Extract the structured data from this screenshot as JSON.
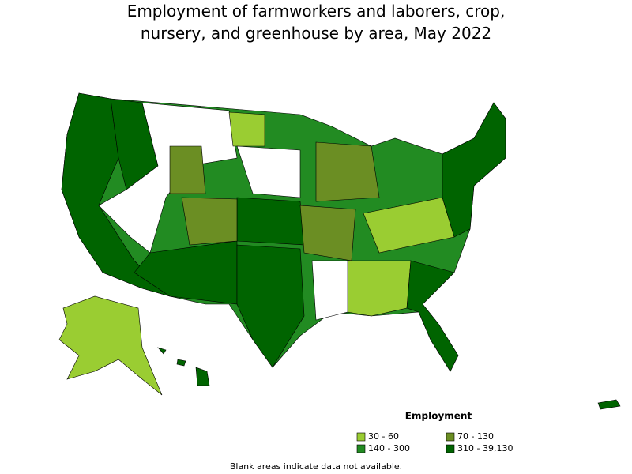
{
  "title_lines": [
    "Employment of farmworkers and laborers, crop,",
    "nursery, and greenhouse by area, May 2022"
  ],
  "legend": {
    "title": "Employment",
    "items": [
      {
        "label": "30 - 60",
        "color": "#9acd32"
      },
      {
        "label": "70 - 130",
        "color": "#6b8e23"
      },
      {
        "label": "140 - 300",
        "color": "#228b22"
      },
      {
        "label": "310 - 39,130",
        "color": "#006400"
      }
    ]
  },
  "note": "Blank areas indicate data not available."
}
